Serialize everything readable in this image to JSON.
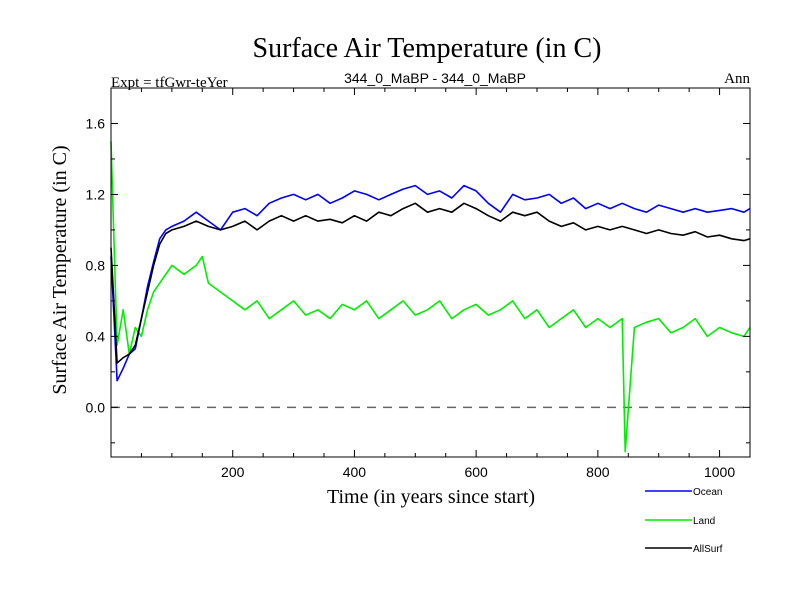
{
  "chart_data": {
    "type": "line",
    "title": "Surface Air Temperature (in C)",
    "subtitle_left": "Expt = tfGwr-teYer",
    "subtitle_center": "344_0_MaBP - 344_0_MaBP",
    "subtitle_right": "Ann",
    "xlabel": "Time (in years since start)",
    "ylabel": "Surface Air Temperature (in C)",
    "xlim": [
      0,
      1050
    ],
    "ylim": [
      -0.28,
      1.8
    ],
    "x_ticks": [
      200,
      400,
      600,
      800,
      1000
    ],
    "x_tick_labels": [
      "200",
      "400",
      "600",
      "800",
      "1000"
    ],
    "y_ticks": [
      0.0,
      0.4,
      0.8,
      1.2,
      1.6
    ],
    "y_tick_labels": [
      "0.0",
      "0.4",
      "0.8",
      "1.2",
      "1.6"
    ],
    "reference_line": {
      "y": 0.0,
      "style": "dashed"
    },
    "series": [
      {
        "name": "Land",
        "color": "#00ee00",
        "x": [
          0,
          10,
          20,
          30,
          40,
          50,
          60,
          70,
          80,
          90,
          100,
          120,
          140,
          150,
          160,
          180,
          200,
          220,
          240,
          260,
          280,
          300,
          320,
          340,
          360,
          380,
          400,
          420,
          440,
          460,
          480,
          500,
          520,
          540,
          560,
          580,
          600,
          620,
          640,
          660,
          680,
          700,
          720,
          740,
          760,
          780,
          800,
          820,
          840,
          845,
          860,
          880,
          900,
          920,
          940,
          960,
          980,
          1000,
          1020,
          1040,
          1050
        ],
        "values": [
          1.5,
          0.35,
          0.55,
          0.3,
          0.45,
          0.4,
          0.55,
          0.65,
          0.7,
          0.75,
          0.8,
          0.75,
          0.8,
          0.85,
          0.7,
          0.65,
          0.6,
          0.55,
          0.6,
          0.5,
          0.55,
          0.6,
          0.52,
          0.55,
          0.5,
          0.58,
          0.55,
          0.6,
          0.5,
          0.55,
          0.6,
          0.52,
          0.55,
          0.6,
          0.5,
          0.55,
          0.58,
          0.52,
          0.55,
          0.6,
          0.5,
          0.55,
          0.45,
          0.5,
          0.55,
          0.45,
          0.5,
          0.45,
          0.5,
          -0.25,
          0.45,
          0.48,
          0.5,
          0.42,
          0.45,
          0.5,
          0.4,
          0.45,
          0.42,
          0.4,
          0.45
        ]
      },
      {
        "name": "Ocean",
        "color": "#0000ff",
        "x": [
          0,
          10,
          20,
          30,
          40,
          50,
          60,
          70,
          80,
          90,
          100,
          120,
          140,
          160,
          180,
          200,
          220,
          240,
          260,
          280,
          300,
          320,
          340,
          360,
          380,
          400,
          420,
          440,
          460,
          480,
          500,
          520,
          540,
          560,
          580,
          600,
          620,
          640,
          660,
          680,
          700,
          720,
          740,
          760,
          780,
          800,
          820,
          840,
          860,
          880,
          900,
          920,
          940,
          960,
          980,
          1000,
          1020,
          1040,
          1050
        ],
        "values": [
          0.85,
          0.15,
          0.22,
          0.3,
          0.33,
          0.5,
          0.68,
          0.82,
          0.95,
          1.0,
          1.02,
          1.05,
          1.1,
          1.05,
          1.0,
          1.1,
          1.12,
          1.08,
          1.15,
          1.18,
          1.2,
          1.17,
          1.2,
          1.15,
          1.18,
          1.22,
          1.2,
          1.17,
          1.2,
          1.23,
          1.25,
          1.2,
          1.22,
          1.18,
          1.25,
          1.22,
          1.15,
          1.1,
          1.2,
          1.17,
          1.18,
          1.2,
          1.15,
          1.18,
          1.12,
          1.15,
          1.12,
          1.15,
          1.12,
          1.1,
          1.14,
          1.12,
          1.1,
          1.12,
          1.1,
          1.11,
          1.12,
          1.1,
          1.12
        ]
      },
      {
        "name": "AllSurf",
        "color": "#000000",
        "x": [
          0,
          10,
          20,
          30,
          40,
          50,
          60,
          70,
          80,
          90,
          100,
          120,
          140,
          160,
          180,
          200,
          220,
          240,
          260,
          280,
          300,
          320,
          340,
          360,
          380,
          400,
          420,
          440,
          460,
          480,
          500,
          520,
          540,
          560,
          580,
          600,
          620,
          640,
          660,
          680,
          700,
          720,
          740,
          760,
          780,
          800,
          820,
          840,
          860,
          880,
          900,
          920,
          940,
          960,
          980,
          1000,
          1020,
          1040,
          1050
        ],
        "values": [
          0.9,
          0.25,
          0.28,
          0.3,
          0.35,
          0.5,
          0.65,
          0.8,
          0.92,
          0.98,
          1.0,
          1.02,
          1.05,
          1.02,
          1.0,
          1.02,
          1.05,
          1.0,
          1.05,
          1.08,
          1.05,
          1.08,
          1.05,
          1.06,
          1.04,
          1.08,
          1.05,
          1.1,
          1.08,
          1.12,
          1.15,
          1.1,
          1.12,
          1.1,
          1.15,
          1.12,
          1.08,
          1.05,
          1.1,
          1.08,
          1.1,
          1.05,
          1.02,
          1.04,
          1.0,
          1.02,
          1.0,
          1.02,
          1.0,
          0.98,
          1.0,
          0.98,
          0.97,
          0.99,
          0.96,
          0.97,
          0.95,
          0.94,
          0.95
        ]
      }
    ],
    "legend": {
      "placement": "bottom-right",
      "entries": [
        "Ocean",
        "Land",
        "AllSurf"
      ]
    }
  }
}
